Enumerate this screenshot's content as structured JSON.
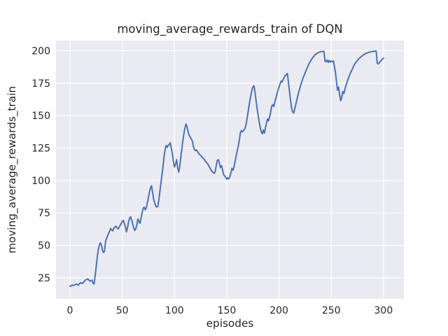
{
  "figure": {
    "background": "#ffffff"
  },
  "chart_data": {
    "type": "line",
    "title": "moving_average_rewards_train of DQN",
    "xlabel": "episodes",
    "ylabel": "moving_average_rewards_train",
    "xticks": [
      0,
      50,
      100,
      150,
      200,
      250,
      300
    ],
    "yticks": [
      25,
      50,
      75,
      100,
      125,
      150,
      175,
      200
    ],
    "xlim": [
      -13.4,
      319.5
    ],
    "ylim": [
      8.8,
      207.8
    ],
    "grid": true,
    "legend_position": "none",
    "style": {
      "plot_background": "#eaeaf2",
      "grid_color": "#ffffff",
      "line_color": "#4c72b0",
      "text_color": "#262626",
      "line_width": 2,
      "grid_width": 1.3
    },
    "series": [
      {
        "name": "moving_average_rewards_train",
        "x_start": 0,
        "x_step": 1,
        "values": [
          18.5,
          18.8,
          19.4,
          19.2,
          19.3,
          19.9,
          20.2,
          19.8,
          19.5,
          20.4,
          21.3,
          21.0,
          20.7,
          21.3,
          22.8,
          23.4,
          23.8,
          24.2,
          23.4,
          22.5,
          22.9,
          23.2,
          20.9,
          20.3,
          26.0,
          33.0,
          40.5,
          46.5,
          50.0,
          52.0,
          50.5,
          46.5,
          44.5,
          45.5,
          53.0,
          55.5,
          57.5,
          59.5,
          61.0,
          63.0,
          62.0,
          61.3,
          63.5,
          64.2,
          64.8,
          63.5,
          62.6,
          64.0,
          65.5,
          67.0,
          68.5,
          69.3,
          67.0,
          64.5,
          60.5,
          63.5,
          68.0,
          71.0,
          72.0,
          69.5,
          66.5,
          63.5,
          61.5,
          63.0,
          66.0,
          70.5,
          68.5,
          67.0,
          71.0,
          75.0,
          78.5,
          79.5,
          77.5,
          79.0,
          83.0,
          87.0,
          91.0,
          94.5,
          96.0,
          91.0,
          86.0,
          83.0,
          80.5,
          79.5,
          80.0,
          85.0,
          91.5,
          98.0,
          104.5,
          111.0,
          118.5,
          124.0,
          127.0,
          125.5,
          127.0,
          128.0,
          129.0,
          124.5,
          120.5,
          114.5,
          110.5,
          112.5,
          116.0,
          110.0,
          106.5,
          111.0,
          118.0,
          124.5,
          130.5,
          136.0,
          140.5,
          143.5,
          141.5,
          137.5,
          135.0,
          133.5,
          132.0,
          130.5,
          126.5,
          124.0,
          123.0,
          123.5,
          122.5,
          121.0,
          120.0,
          119.5,
          118.5,
          117.5,
          117.0,
          115.5,
          114.5,
          113.5,
          112.5,
          111.0,
          109.5,
          108.0,
          107.0,
          106.0,
          105.5,
          107.0,
          112.0,
          115.5,
          116.0,
          113.0,
          110.0,
          111.5,
          108.0,
          104.5,
          103.5,
          102.5,
          101.0,
          102.0,
          101.3,
          103.0,
          106.0,
          109.5,
          108.0,
          110.5,
          115.0,
          119.0,
          123.0,
          126.5,
          131.0,
          137.0,
          138.5,
          137.5,
          138.5,
          139.5,
          141.5,
          145.5,
          150.5,
          156.0,
          161.0,
          165.5,
          169.5,
          172.0,
          173.0,
          168.0,
          162.0,
          156.0,
          150.5,
          145.5,
          141.0,
          137.5,
          136.0,
          139.0,
          136.5,
          140.5,
          144.5,
          147.5,
          146.0,
          149.0,
          153.0,
          157.0,
          158.5,
          157.0,
          160.5,
          163.5,
          166.5,
          169.5,
          172.0,
          174.5,
          176.5,
          176.0,
          178.0,
          179.5,
          181.0,
          181.5,
          182.5,
          176.0,
          169.0,
          162.0,
          156.0,
          153.0,
          152.0,
          155.0,
          158.5,
          162.0,
          165.5,
          168.5,
          171.5,
          174.0,
          176.5,
          179.0,
          181.0,
          183.0,
          185.0,
          187.0,
          188.8,
          190.4,
          191.8,
          193.2,
          194.4,
          195.4,
          196.4,
          197.2,
          197.8,
          198.3,
          198.7,
          199.0,
          199.2,
          199.4,
          199.5,
          199.5,
          192.0,
          191.5,
          192.8,
          191.0,
          192.5,
          191.3,
          192.0,
          191.5,
          192.2,
          188.0,
          183.5,
          176.0,
          169.5,
          172.0,
          166.0,
          161.5,
          164.0,
          168.5,
          167.0,
          170.0,
          173.0,
          175.5,
          178.0,
          180.0,
          182.0,
          184.0,
          185.5,
          187.5,
          189.0,
          190.5,
          191.5,
          192.5,
          193.5,
          194.3,
          195.0,
          195.7,
          196.3,
          196.9,
          197.4,
          197.8,
          198.2,
          198.5,
          198.8,
          199.0,
          199.2,
          199.4,
          199.5,
          199.6,
          199.7,
          199.7,
          190.5,
          189.8,
          190.8,
          191.8,
          192.8,
          193.6,
          194.3
        ]
      }
    ]
  }
}
